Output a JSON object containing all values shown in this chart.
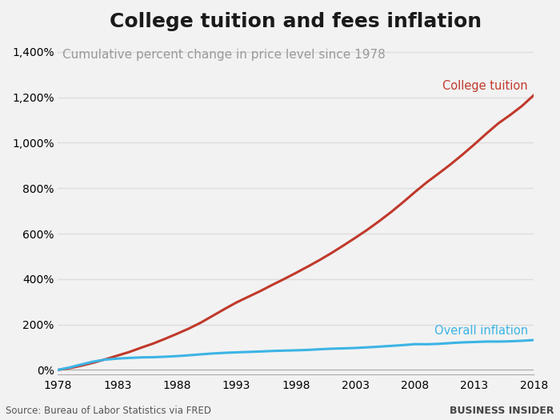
{
  "title": "College tuition and fees inflation",
  "subtitle": "Cumulative percent change in price level since 1978",
  "source": "Source: Bureau of Labor Statistics via FRED",
  "watermark": "BUSINESS INSIDER",
  "title_fontsize": 18,
  "subtitle_fontsize": 11,
  "background_color": "#f2f2f2",
  "plot_bg_color": "#f2f2f2",
  "tuition_color": "#c0392b",
  "overall_color": "#3cb4e5",
  "tuition_label": "College tuition",
  "overall_label": "Overall inflation",
  "years": [
    1978,
    1979,
    1980,
    1981,
    1982,
    1983,
    1984,
    1985,
    1986,
    1987,
    1988,
    1989,
    1990,
    1991,
    1992,
    1993,
    1994,
    1995,
    1996,
    1997,
    1998,
    1999,
    2000,
    2001,
    2002,
    2003,
    2004,
    2005,
    2006,
    2007,
    2008,
    2009,
    2010,
    2011,
    2012,
    2013,
    2014,
    2015,
    2016,
    2017,
    2018
  ],
  "tuition_pct": [
    0,
    8,
    19,
    32,
    47,
    63,
    79,
    98,
    116,
    137,
    159,
    182,
    208,
    238,
    268,
    297,
    322,
    347,
    374,
    400,
    427,
    455,
    484,
    515,
    548,
    582,
    617,
    655,
    695,
    738,
    783,
    826,
    865,
    905,
    948,
    993,
    1040,
    1085,
    1122,
    1162,
    1210
  ],
  "overall_pct": [
    0,
    11.2,
    24.4,
    36.9,
    45.5,
    49.8,
    52.7,
    55.1,
    56.0,
    58.0,
    60.8,
    64.3,
    68.5,
    72.3,
    75.1,
    77.3,
    79.1,
    81.0,
    83.3,
    84.9,
    86.2,
    88.0,
    90.9,
    93.4,
    94.8,
    96.6,
    99.3,
    102.4,
    105.8,
    109.2,
    113.4,
    112.9,
    114.7,
    118.2,
    121.1,
    122.8,
    124.8,
    124.7,
    125.9,
    128.2,
    131.5
  ],
  "xlim": [
    1978,
    2018
  ],
  "ylim": [
    -20,
    1450
  ],
  "yticks": [
    0,
    200,
    400,
    600,
    800,
    1000,
    1200,
    1400
  ],
  "ytick_labels": [
    "0%",
    "200%",
    "400%",
    "600%",
    "800%",
    "1,000%",
    "1,200%",
    "1,400%"
  ],
  "xticks": [
    1978,
    1983,
    1988,
    1993,
    1998,
    2003,
    2008,
    2013,
    2018
  ]
}
